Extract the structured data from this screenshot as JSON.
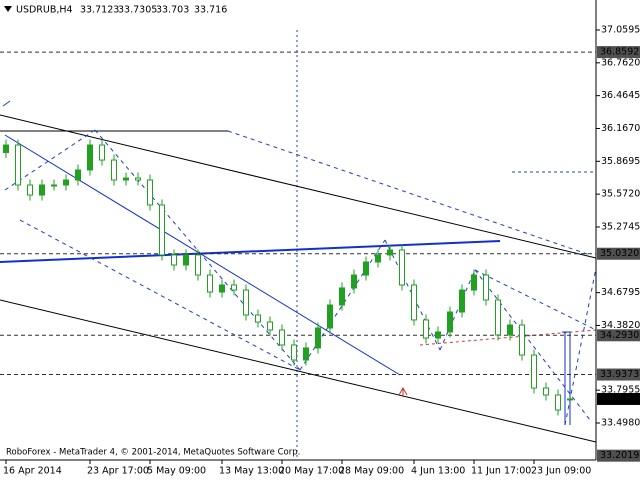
{
  "chart_data": {
    "type": "candlestick",
    "title": "USDRUB,H4",
    "color": "#22a022",
    "categories": [
      "16 Apr 2014",
      null,
      null,
      null,
      null,
      null,
      null,
      "23 Apr 17:00",
      null,
      null,
      null,
      null,
      "5 May 09:00",
      null,
      null,
      null,
      null,
      null,
      "13 May 13:00",
      null,
      null,
      null,
      null,
      "20 May 17:00",
      null,
      null,
      null,
      null,
      "28 May 09:00",
      null,
      null,
      null,
      null,
      null,
      "4 Jun 13:00",
      null,
      null,
      null,
      null,
      "11 Jun 17:00",
      null,
      null,
      null,
      null,
      "23 Jun 09:00",
      null,
      null,
      null
    ],
    "open": [
      35.95,
      36.017,
      35.655,
      35.564,
      35.655,
      35.655,
      35.7,
      35.791,
      36.017,
      35.881,
      35.7,
      35.718,
      35.7,
      35.474,
      35.021,
      34.93,
      35.021,
      34.839,
      34.685,
      34.749,
      34.703,
      34.477,
      34.413,
      34.341,
      34.205,
      34.069,
      34.178,
      34.359,
      34.567,
      34.722,
      34.839,
      34.957,
      35.021,
      35.066,
      34.749,
      34.432,
      34.268,
      34.323,
      34.504,
      34.703,
      34.839,
      34.613,
      34.296,
      34.386,
      34.114,
      33.815,
      33.752,
      33.7123
    ],
    "high": [
      36.067,
      36.067,
      35.705,
      35.705,
      35.705,
      35.75,
      35.841,
      36.067,
      36.067,
      35.931,
      35.768,
      35.768,
      35.75,
      35.524,
      35.071,
      35.071,
      35.071,
      34.889,
      34.799,
      34.799,
      34.753,
      34.527,
      34.463,
      34.391,
      34.255,
      34.228,
      34.409,
      34.617,
      34.772,
      34.889,
      35.007,
      35.071,
      35.116,
      35.116,
      34.799,
      34.482,
      34.373,
      34.554,
      34.753,
      34.889,
      34.889,
      34.663,
      34.436,
      34.436,
      34.164,
      33.865,
      33.802,
      33.7305
    ],
    "low": [
      35.9,
      35.605,
      35.514,
      35.514,
      35.605,
      35.605,
      35.65,
      35.741,
      35.831,
      35.65,
      35.65,
      35.65,
      35.424,
      34.971,
      34.88,
      34.88,
      34.789,
      34.635,
      34.635,
      34.653,
      34.427,
      34.363,
      34.291,
      34.155,
      34.019,
      34.019,
      34.128,
      34.309,
      34.517,
      34.672,
      34.789,
      34.907,
      34.971,
      34.699,
      34.382,
      34.218,
      34.218,
      34.273,
      34.454,
      34.653,
      34.563,
      34.246,
      34.246,
      34.064,
      33.765,
      33.702,
      33.566,
      33.703
    ],
    "close": [
      36.017,
      35.655,
      35.564,
      35.655,
      35.655,
      35.7,
      35.791,
      36.017,
      35.881,
      35.7,
      35.718,
      35.7,
      35.474,
      35.021,
      34.93,
      35.021,
      34.839,
      34.685,
      34.749,
      34.703,
      34.477,
      34.413,
      34.341,
      34.205,
      34.069,
      34.178,
      34.359,
      34.567,
      34.722,
      34.839,
      34.957,
      35.021,
      35.066,
      34.749,
      34.432,
      34.268,
      34.323,
      34.504,
      34.703,
      34.839,
      34.613,
      34.296,
      34.386,
      34.114,
      33.815,
      33.752,
      33.616,
      33.716
    ],
    "ylim": [
      33.1628,
      37.3314
    ],
    "yticks": [
      37.0595,
      {
        "value": 36.762,
        "label": "36.7620"
      },
      36.4645,
      {
        "value": 36.167,
        "label": "36.1670"
      },
      35.8695,
      {
        "value": 35.572,
        "label": "35.5720"
      },
      35.2745,
      34.6795,
      {
        "value": 34.382,
        "label": "34.3820"
      },
      33.7955,
      {
        "value": 33.498,
        "label": "33.4980"
      }
    ],
    "levels": [
      36.8592,
      {
        "value": 35.032,
        "label": "35.0320"
      },
      {
        "value": 34.293,
        "label": "34.2930"
      },
      33.9373,
      {
        "value": 33.716,
        "label": "33.7160"
      },
      33.2019
    ],
    "footer": "RoboForex - MetaTrader 4, © 2001-2014, MetaQuotes Software Corp."
  }
}
